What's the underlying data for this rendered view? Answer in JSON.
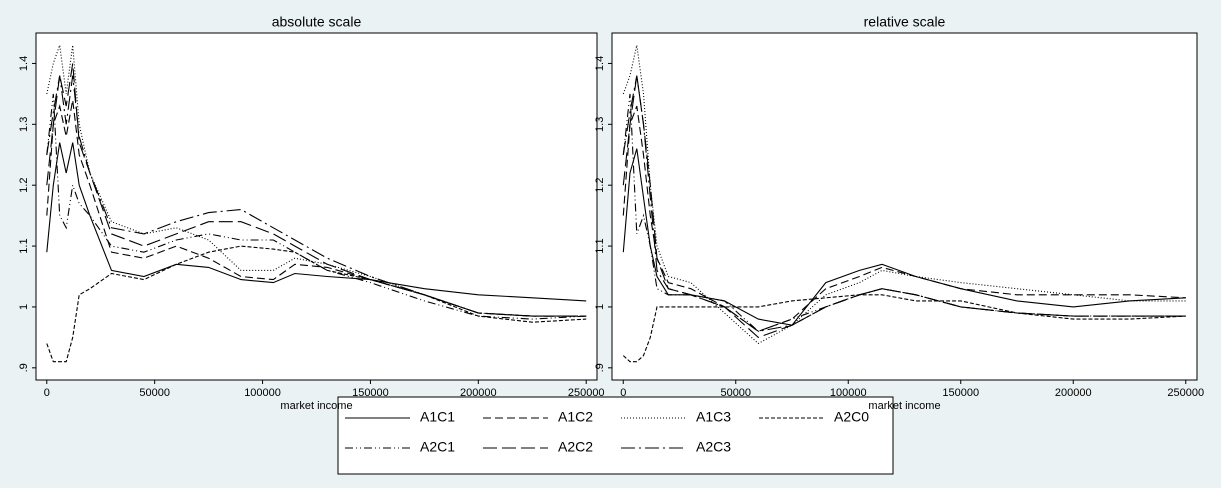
{
  "chart_data": [
    {
      "type": "line",
      "title": "absolute scale",
      "xlabel": "market income",
      "x": [
        0,
        3000,
        6000,
        9000,
        12000,
        15000,
        20000,
        30000,
        45000,
        60000,
        75000,
        90000,
        105000,
        115000,
        130000,
        150000,
        175000,
        200000,
        225000,
        250000
      ],
      "xlim": [
        -5000,
        255000
      ],
      "ylim": [
        0.88,
        1.45
      ],
      "xticks": [
        0,
        50000,
        100000,
        150000,
        200000,
        250000
      ],
      "yticks": [
        {
          "value": 0.9,
          "label": ".9"
        },
        1,
        1.1,
        1.2,
        1.3,
        1.4
      ],
      "series": [
        {
          "name": "A1C1",
          "color": "#000000",
          "dash": "none",
          "values": [
            1.09,
            1.2,
            1.27,
            1.22,
            1.27,
            1.2,
            1.15,
            1.06,
            1.05,
            1.07,
            1.065,
            1.045,
            1.04,
            1.055,
            1.05,
            1.045,
            1.03,
            1.02,
            1.015,
            1.01
          ]
        },
        {
          "name": "A1C2",
          "color": "#000000",
          "dash": "8,4",
          "values": [
            1.15,
            1.3,
            1.33,
            1.28,
            1.34,
            1.25,
            1.2,
            1.09,
            1.08,
            1.1,
            1.08,
            1.05,
            1.045,
            1.07,
            1.065,
            1.045,
            1.02,
            0.99,
            0.985,
            0.985
          ]
        },
        {
          "name": "A1C3",
          "color": "#000000",
          "dash": "1,2",
          "values": [
            1.35,
            1.4,
            1.43,
            1.35,
            1.43,
            1.3,
            1.22,
            1.14,
            1.12,
            1.13,
            1.11,
            1.06,
            1.06,
            1.08,
            1.07,
            1.05,
            1.02,
            0.99,
            0.985,
            0.985
          ]
        },
        {
          "name": "A2C0",
          "color": "#000000",
          "dash": "4,2",
          "values": [
            0.94,
            0.91,
            0.91,
            0.91,
            0.95,
            1.02,
            1.03,
            1.055,
            1.045,
            1.07,
            1.09,
            1.1,
            1.095,
            1.09,
            1.06,
            1.045,
            1.02,
            0.985,
            0.975,
            0.98
          ]
        },
        {
          "name": "A2C1",
          "color": "#000000",
          "dash": "8,3,1,3,1,3",
          "values": [
            1.25,
            1.35,
            1.15,
            1.13,
            1.2,
            1.17,
            1.15,
            1.1,
            1.09,
            1.11,
            1.12,
            1.11,
            1.11,
            1.09,
            1.06,
            1.04,
            1.01,
            0.985,
            0.98,
            0.985
          ]
        },
        {
          "name": "A2C2",
          "color": "#000000",
          "dash": "14,5",
          "values": [
            1.2,
            1.3,
            1.38,
            1.33,
            1.4,
            1.27,
            1.22,
            1.12,
            1.1,
            1.12,
            1.14,
            1.14,
            1.12,
            1.1,
            1.07,
            1.045,
            1.02,
            0.99,
            0.985,
            0.985
          ]
        },
        {
          "name": "A2C3",
          "color": "#000000",
          "dash": "14,4,2,4",
          "values": [
            1.25,
            1.32,
            1.38,
            1.3,
            1.38,
            1.28,
            1.22,
            1.13,
            1.12,
            1.14,
            1.155,
            1.16,
            1.13,
            1.11,
            1.08,
            1.05,
            1.02,
            0.99,
            0.985,
            0.985
          ]
        }
      ]
    },
    {
      "type": "line",
      "title": "relative scale",
      "xlabel": "market income",
      "x": [
        0,
        3000,
        6000,
        9000,
        12000,
        15000,
        20000,
        30000,
        45000,
        60000,
        75000,
        90000,
        105000,
        115000,
        130000,
        150000,
        175000,
        200000,
        225000,
        250000
      ],
      "xlim": [
        -5000,
        255000
      ],
      "ylim": [
        0.88,
        1.45
      ],
      "xticks": [
        0,
        50000,
        100000,
        150000,
        200000,
        250000
      ],
      "yticks": [
        {
          "value": 0.9,
          "label": ".9"
        },
        1,
        1.1,
        1.2,
        1.3,
        1.4
      ],
      "series": [
        {
          "color": "#000000",
          "dash": "none",
          "values": [
            1.09,
            1.22,
            1.26,
            1.18,
            1.1,
            1.05,
            1.02,
            1.02,
            1.01,
            0.98,
            0.97,
            1.04,
            1.06,
            1.07,
            1.05,
            1.03,
            1.01,
            1.0,
            1.01,
            1.015
          ]
        },
        {
          "color": "#000000",
          "dash": "8,4",
          "values": [
            1.15,
            1.3,
            1.33,
            1.25,
            1.15,
            1.08,
            1.04,
            1.03,
            1.0,
            0.96,
            0.98,
            1.03,
            1.05,
            1.065,
            1.05,
            1.03,
            1.02,
            1.02,
            1.02,
            1.015
          ]
        },
        {
          "color": "#000000",
          "dash": "1,2",
          "values": [
            1.35,
            1.38,
            1.43,
            1.35,
            1.2,
            1.1,
            1.05,
            1.04,
            0.99,
            0.94,
            0.97,
            1.02,
            1.04,
            1.06,
            1.05,
            1.04,
            1.03,
            1.02,
            1.01,
            1.01
          ]
        },
        {
          "color": "#000000",
          "dash": "4,2",
          "values": [
            0.92,
            0.91,
            0.91,
            0.92,
            0.95,
            1.0,
            1.0,
            1.0,
            1.0,
            1.0,
            1.01,
            1.015,
            1.02,
            1.02,
            1.01,
            1.01,
            0.99,
            0.98,
            0.98,
            0.985
          ]
        },
        {
          "color": "#000000",
          "dash": "8,3,1,3,1,3",
          "values": [
            1.25,
            1.35,
            1.12,
            1.15,
            1.1,
            1.03,
            1.02,
            1.02,
            1.01,
            0.96,
            0.98,
            1.0,
            1.02,
            1.03,
            1.02,
            1.0,
            0.99,
            0.985,
            0.985,
            0.985
          ]
        },
        {
          "color": "#000000",
          "dash": "14,5",
          "values": [
            1.2,
            1.3,
            1.38,
            1.3,
            1.2,
            1.08,
            1.03,
            1.02,
            1.0,
            0.95,
            0.97,
            1.0,
            1.02,
            1.03,
            1.02,
            1.0,
            0.99,
            0.985,
            0.985,
            0.985
          ]
        },
        {
          "color": "#000000",
          "dash": "14,4,2,4",
          "values": [
            1.25,
            1.32,
            1.38,
            1.3,
            1.18,
            1.06,
            1.03,
            1.02,
            1.0,
            0.96,
            0.97,
            1.0,
            1.02,
            1.03,
            1.02,
            1.0,
            0.99,
            0.985,
            0.985,
            0.985
          ]
        }
      ]
    }
  ]
}
